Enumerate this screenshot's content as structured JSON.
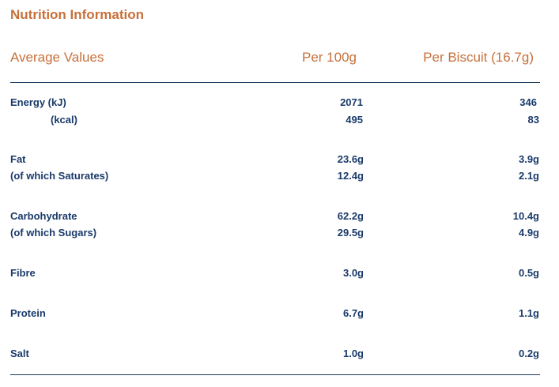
{
  "title": "Nutrition Information",
  "headers": {
    "label": "Average Values",
    "per100": "Per 100g",
    "perBiscuit": "Per Biscuit (16.7g)"
  },
  "rows": [
    {
      "label": "Energy (kJ)",
      "per100": "2071",
      "perBiscuit": "346"
    },
    {
      "label": "(kcal)",
      "per100": "495",
      "perBiscuit": "83"
    },
    {
      "label": "Fat",
      "per100": "23.6g",
      "perBiscuit": "3.9g"
    },
    {
      "label": "(of which Saturates)",
      "per100": "12.4g",
      "perBiscuit": "2.1g"
    },
    {
      "label": "Carbohydrate",
      "per100": "62.2g",
      "perBiscuit": "10.4g"
    },
    {
      "label": "(of which Sugars)",
      "per100": "29.5g",
      "perBiscuit": "4.9g"
    },
    {
      "label": "Fibre",
      "per100": "3.0g",
      "perBiscuit": "0.5g"
    },
    {
      "label": "Protein",
      "per100": "6.7g",
      "perBiscuit": "1.1g"
    },
    {
      "label": "Salt",
      "per100": "1.0g",
      "perBiscuit": "0.2g"
    }
  ],
  "colors": {
    "accent": "#c8703a",
    "text": "#1a3a6a",
    "rule": "#1a3a5c"
  }
}
